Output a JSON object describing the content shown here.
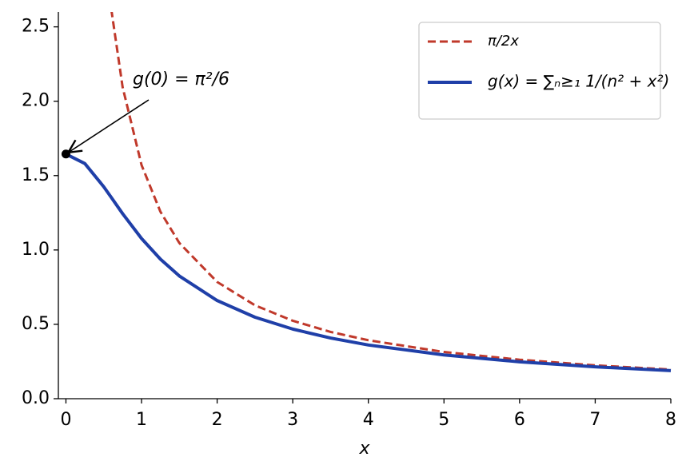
{
  "chart_data": {
    "type": "line",
    "x": [
      0,
      0.25,
      0.5,
      0.6,
      0.75,
      1,
      1.25,
      1.5,
      2,
      2.5,
      3,
      3.5,
      4,
      5,
      6,
      7,
      8
    ],
    "series": [
      {
        "name": "π/2x",
        "color": "#c0392b",
        "dash": true,
        "values": [
          null,
          null,
          null,
          2.618,
          2.094,
          1.571,
          1.257,
          1.047,
          0.785,
          0.628,
          0.524,
          0.449,
          0.393,
          0.314,
          0.262,
          0.224,
          0.196
        ]
      },
      {
        "name": "g(x) = ∑ₙ≥₁ 1/(n² + x²)",
        "color": "#1f3fa8",
        "dash": false,
        "values": [
          1.645,
          1.581,
          1.425,
          1.353,
          1.244,
          1.077,
          0.938,
          0.825,
          0.66,
          0.548,
          0.468,
          0.408,
          0.361,
          0.294,
          0.248,
          0.214,
          0.189
        ]
      }
    ],
    "xlabel": "x",
    "xlim": [
      -0.1,
      8
    ],
    "xticks": [
      0,
      1,
      2,
      3,
      4,
      5,
      6,
      7,
      8
    ],
    "ylim": [
      0,
      2.6
    ],
    "yticks": [
      {
        "value": 0,
        "label": "0.0"
      },
      {
        "value": 0.5,
        "label": "0.5"
      },
      {
        "value": 1,
        "label": "1.0"
      },
      {
        "value": 1.5,
        "label": "1.5"
      },
      {
        "value": 2,
        "label": "2.0"
      },
      {
        "value": 2.5,
        "label": "2.5"
      }
    ],
    "legend": "upper right",
    "annotation": {
      "text": "g(0) = π²/6",
      "x": 0,
      "y": 1.645
    }
  }
}
